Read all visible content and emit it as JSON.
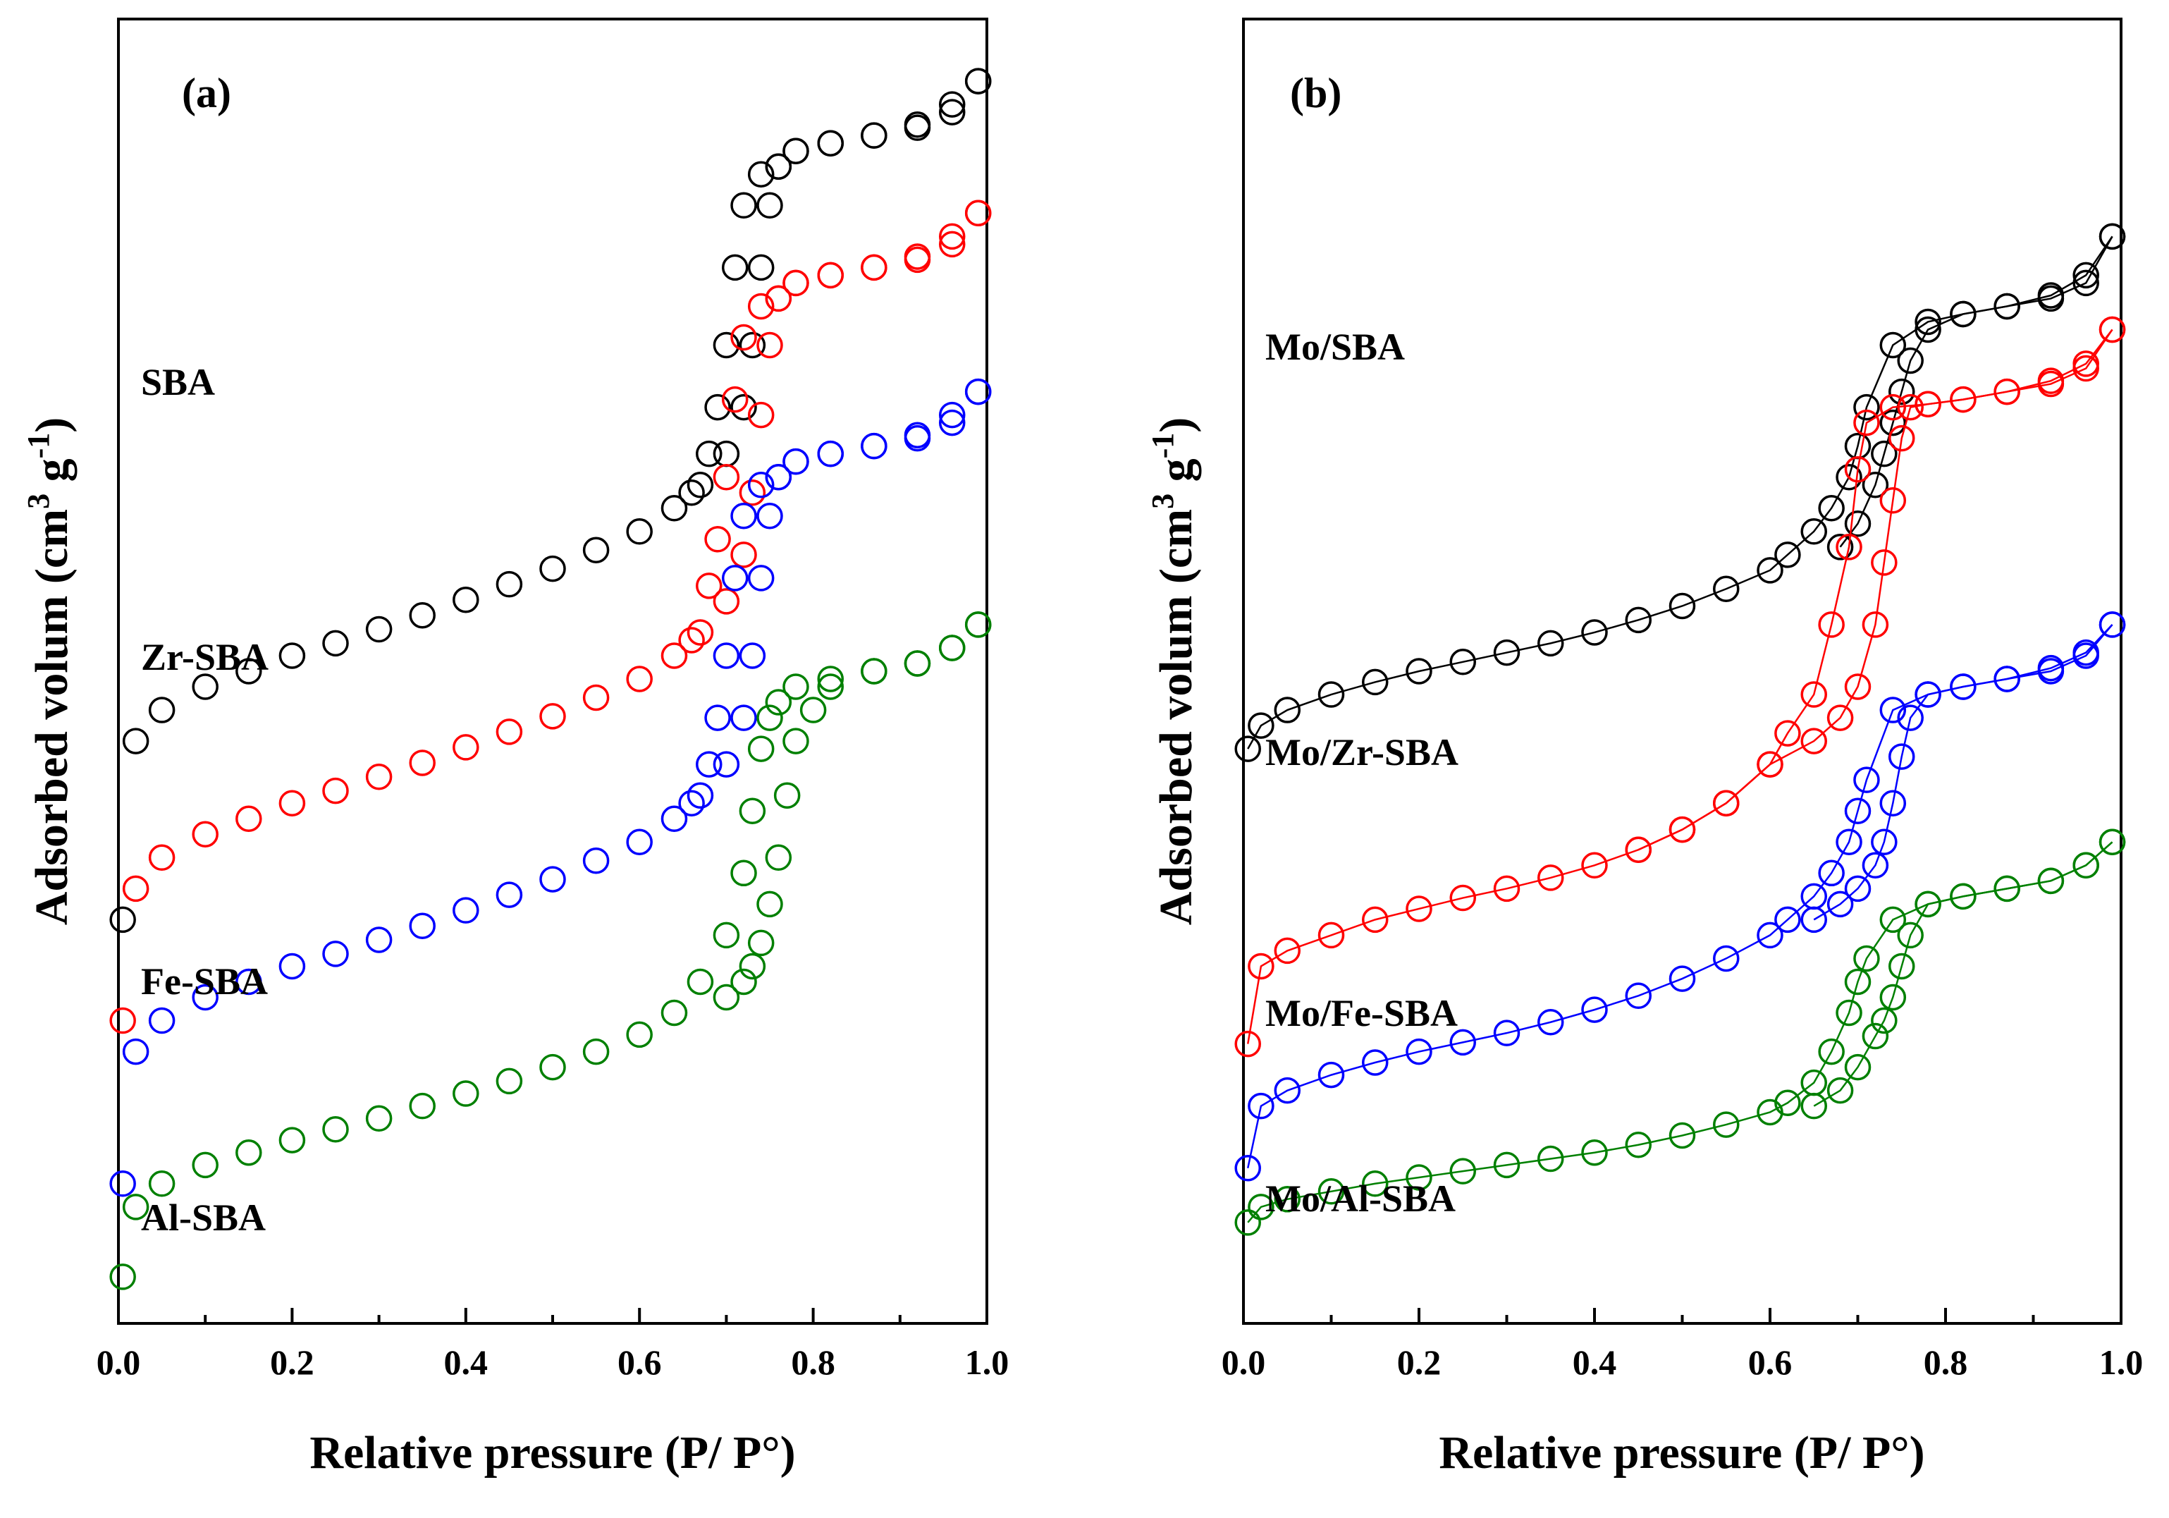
{
  "chart_data": [
    {
      "type": "scatter",
      "panel_label": "(a)",
      "xlabel": "Relative pressure (P/ P°)",
      "ylabel": "Adsorbed volum (cm3 g-1)",
      "ylabel_parts": {
        "main": "Adsorbed volum (cm",
        "sup1": "3",
        "mid": " g",
        "sup2": "-1",
        "end": ")"
      },
      "xlim": [
        0.0,
        1.0
      ],
      "x_ticks": [
        "0.0",
        "0.2",
        "0.4",
        "0.6",
        "0.8",
        "1.0"
      ],
      "y_ticks_shown": false,
      "connect_lines": false,
      "series": [
        {
          "name": "SBA",
          "color": "#000000",
          "adsorption": {
            "x": [
              0.005,
              0.02,
              0.05,
              0.1,
              0.15,
              0.2,
              0.25,
              0.3,
              0.35,
              0.4,
              0.45,
              0.5,
              0.55,
              0.6,
              0.64,
              0.67,
              0.7,
              0.72,
              0.73,
              0.74,
              0.75,
              0.76,
              0.78,
              0.82,
              0.87,
              0.92,
              0.96,
              0.99
            ],
            "y": [
              0.14,
              0.255,
              0.275,
              0.29,
              0.3,
              0.31,
              0.318,
              0.327,
              0.336,
              0.346,
              0.356,
              0.366,
              0.378,
              0.39,
              0.405,
              0.42,
              0.44,
              0.47,
              0.51,
              0.56,
              0.6,
              0.625,
              0.635,
              0.64,
              0.645,
              0.65,
              0.66,
              0.68
            ]
          },
          "desorption": {
            "x": [
              0.99,
              0.96,
              0.92,
              0.87,
              0.82,
              0.78,
              0.76,
              0.74,
              0.72,
              0.71,
              0.7,
              0.69,
              0.68,
              0.66
            ],
            "y": [
              0.68,
              0.665,
              0.652,
              0.645,
              0.64,
              0.635,
              0.625,
              0.62,
              0.6,
              0.56,
              0.51,
              0.47,
              0.44,
              0.415
            ]
          }
        },
        {
          "name": "Zr-SBA",
          "color": "#ff0000",
          "adsorption": {
            "x": [
              0.005,
              0.02,
              0.05,
              0.1,
              0.15,
              0.2,
              0.25,
              0.3,
              0.35,
              0.4,
              0.45,
              0.5,
              0.55,
              0.6,
              0.64,
              0.67,
              0.7,
              0.72,
              0.73,
              0.74,
              0.75,
              0.76,
              0.78,
              0.82,
              0.87,
              0.92,
              0.96,
              0.99
            ],
            "y": [
              0.075,
              0.16,
              0.18,
              0.195,
              0.205,
              0.215,
              0.223,
              0.232,
              0.241,
              0.251,
              0.261,
              0.271,
              0.283,
              0.295,
              0.31,
              0.325,
              0.345,
              0.375,
              0.415,
              0.465,
              0.51,
              0.54,
              0.55,
              0.555,
              0.56,
              0.565,
              0.575,
              0.595
            ]
          },
          "desorption": {
            "x": [
              0.99,
              0.96,
              0.92,
              0.87,
              0.82,
              0.78,
              0.76,
              0.74,
              0.72,
              0.71,
              0.7,
              0.69,
              0.68,
              0.66
            ],
            "y": [
              0.595,
              0.58,
              0.567,
              0.56,
              0.555,
              0.55,
              0.54,
              0.535,
              0.515,
              0.475,
              0.425,
              0.385,
              0.355,
              0.32
            ]
          }
        },
        {
          "name": "Fe-SBA",
          "color": "#0000ff",
          "adsorption": {
            "x": [
              0.005,
              0.02,
              0.05,
              0.1,
              0.15,
              0.2,
              0.25,
              0.3,
              0.35,
              0.4,
              0.45,
              0.5,
              0.55,
              0.6,
              0.64,
              0.67,
              0.7,
              0.72,
              0.73,
              0.74,
              0.75,
              0.76,
              0.78,
              0.82,
              0.87,
              0.92,
              0.96,
              0.99
            ],
            "y": [
              -0.03,
              0.055,
              0.075,
              0.09,
              0.1,
              0.11,
              0.118,
              0.127,
              0.136,
              0.146,
              0.156,
              0.166,
              0.178,
              0.19,
              0.205,
              0.22,
              0.24,
              0.27,
              0.31,
              0.36,
              0.4,
              0.425,
              0.435,
              0.44,
              0.445,
              0.45,
              0.46,
              0.48
            ]
          },
          "desorption": {
            "x": [
              0.99,
              0.96,
              0.92,
              0.87,
              0.82,
              0.78,
              0.76,
              0.74,
              0.72,
              0.71,
              0.7,
              0.69,
              0.68,
              0.66
            ],
            "y": [
              0.48,
              0.465,
              0.452,
              0.445,
              0.44,
              0.435,
              0.425,
              0.42,
              0.4,
              0.36,
              0.31,
              0.27,
              0.24,
              0.215
            ]
          }
        },
        {
          "name": "Al-SBA",
          "color": "#008000",
          "adsorption": {
            "x": [
              0.005,
              0.02,
              0.05,
              0.1,
              0.15,
              0.2,
              0.25,
              0.3,
              0.35,
              0.4,
              0.45,
              0.5,
              0.55,
              0.6,
              0.64,
              0.67,
              0.7,
              0.72,
              0.73,
              0.74,
              0.75,
              0.76,
              0.78,
              0.82,
              0.87,
              0.92,
              0.96,
              0.99
            ],
            "y": [
              -0.09,
              -0.045,
              -0.03,
              -0.018,
              -0.01,
              -0.002,
              0.005,
              0.012,
              0.02,
              0.028,
              0.036,
              0.045,
              0.055,
              0.066,
              0.08,
              0.1,
              0.13,
              0.17,
              0.21,
              0.25,
              0.27,
              0.28,
              0.29,
              0.295,
              0.3,
              0.305,
              0.315,
              0.33
            ]
          },
          "desorption": {
            "x": [
              0.99,
              0.96,
              0.92,
              0.87,
              0.82,
              0.8,
              0.78,
              0.77,
              0.76,
              0.75,
              0.74,
              0.73,
              0.72,
              0.7
            ],
            "y": [
              0.33,
              0.315,
              0.305,
              0.3,
              0.29,
              0.275,
              0.255,
              0.22,
              0.18,
              0.15,
              0.125,
              0.11,
              0.1,
              0.09
            ]
          }
        }
      ]
    },
    {
      "type": "line",
      "panel_label": "(b)",
      "xlabel": "Relative pressure (P/ P°)",
      "ylabel": "Adsorbed volum (cm3 g-1)",
      "ylabel_parts": {
        "main": "Adsorbed volum (cm",
        "sup1": "3",
        "mid": " g",
        "sup2": "-1",
        "end": ")"
      },
      "xlim": [
        0.0,
        1.0
      ],
      "x_ticks": [
        "0.0",
        "0.2",
        "0.4",
        "0.6",
        "0.8",
        "1.0"
      ],
      "y_ticks_shown": false,
      "connect_lines": true,
      "series": [
        {
          "name": "Mo/SBA",
          "color": "#000000",
          "adsorption": {
            "x": [
              0.005,
              0.02,
              0.05,
              0.1,
              0.15,
              0.2,
              0.25,
              0.3,
              0.35,
              0.4,
              0.45,
              0.5,
              0.55,
              0.6,
              0.62,
              0.65,
              0.67,
              0.69,
              0.7,
              0.71,
              0.74,
              0.78,
              0.82,
              0.87,
              0.92,
              0.96,
              0.99
            ],
            "y": [
              0.25,
              0.265,
              0.275,
              0.285,
              0.293,
              0.3,
              0.306,
              0.312,
              0.318,
              0.325,
              0.333,
              0.342,
              0.353,
              0.365,
              0.375,
              0.39,
              0.405,
              0.425,
              0.445,
              0.47,
              0.51,
              0.525,
              0.53,
              0.535,
              0.54,
              0.55,
              0.58
            ]
          },
          "desorption": {
            "x": [
              0.99,
              0.96,
              0.92,
              0.87,
              0.82,
              0.78,
              0.76,
              0.75,
              0.74,
              0.73,
              0.72,
              0.7,
              0.68
            ],
            "y": [
              0.58,
              0.555,
              0.542,
              0.535,
              0.53,
              0.52,
              0.5,
              0.48,
              0.46,
              0.44,
              0.42,
              0.395,
              0.38
            ]
          }
        },
        {
          "name": "Mo/Zr-SBA",
          "color": "#ff0000",
          "adsorption": {
            "x": [
              0.005,
              0.02,
              0.05,
              0.1,
              0.15,
              0.2,
              0.25,
              0.3,
              0.35,
              0.4,
              0.45,
              0.5,
              0.55,
              0.6,
              0.62,
              0.65,
              0.67,
              0.69,
              0.7,
              0.71,
              0.74,
              0.78,
              0.82,
              0.87,
              0.92,
              0.96,
              0.99
            ],
            "y": [
              0.06,
              0.11,
              0.12,
              0.13,
              0.14,
              0.147,
              0.154,
              0.16,
              0.167,
              0.175,
              0.185,
              0.198,
              0.215,
              0.24,
              0.26,
              0.285,
              0.33,
              0.38,
              0.43,
              0.46,
              0.47,
              0.472,
              0.475,
              0.48,
              0.485,
              0.495,
              0.52
            ]
          },
          "desorption": {
            "x": [
              0.99,
              0.96,
              0.92,
              0.87,
              0.82,
              0.78,
              0.76,
              0.75,
              0.74,
              0.73,
              0.72,
              0.7,
              0.68,
              0.65,
              0.6,
              0.55,
              0.5,
              0.45
            ],
            "y": [
              0.52,
              0.498,
              0.487,
              0.48,
              0.475,
              0.472,
              0.47,
              0.45,
              0.41,
              0.37,
              0.33,
              0.29,
              0.27,
              0.255,
              0.24,
              0.215,
              0.198,
              0.185
            ]
          }
        },
        {
          "name": "Mo/Fe-SBA",
          "color": "#0000ff",
          "adsorption": {
            "x": [
              0.005,
              0.02,
              0.05,
              0.1,
              0.15,
              0.2,
              0.25,
              0.3,
              0.35,
              0.4,
              0.45,
              0.5,
              0.55,
              0.6,
              0.62,
              0.65,
              0.67,
              0.69,
              0.7,
              0.71,
              0.74,
              0.78,
              0.82,
              0.87,
              0.92,
              0.96,
              0.99
            ],
            "y": [
              -0.02,
              0.02,
              0.03,
              0.04,
              0.048,
              0.055,
              0.061,
              0.067,
              0.074,
              0.082,
              0.091,
              0.102,
              0.115,
              0.13,
              0.14,
              0.155,
              0.17,
              0.19,
              0.21,
              0.23,
              0.275,
              0.285,
              0.29,
              0.295,
              0.3,
              0.31,
              0.33
            ]
          },
          "desorption": {
            "x": [
              0.99,
              0.96,
              0.92,
              0.87,
              0.82,
              0.78,
              0.76,
              0.75,
              0.74,
              0.73,
              0.72,
              0.7,
              0.68,
              0.65
            ],
            "y": [
              0.33,
              0.312,
              0.302,
              0.295,
              0.29,
              0.285,
              0.27,
              0.245,
              0.215,
              0.19,
              0.175,
              0.16,
              0.15,
              0.14
            ]
          }
        },
        {
          "name": "Mo/Al-SBA",
          "color": "#008000",
          "adsorption": {
            "x": [
              0.005,
              0.02,
              0.05,
              0.1,
              0.15,
              0.2,
              0.25,
              0.3,
              0.35,
              0.4,
              0.45,
              0.5,
              0.55,
              0.6,
              0.62,
              0.65,
              0.67,
              0.69,
              0.7,
              0.71,
              0.74,
              0.78,
              0.82,
              0.87,
              0.92,
              0.96,
              0.99
            ],
            "y": [
              -0.055,
              -0.045,
              -0.04,
              -0.035,
              -0.03,
              -0.026,
              -0.022,
              -0.018,
              -0.014,
              -0.01,
              -0.005,
              0.001,
              0.008,
              0.016,
              0.022,
              0.035,
              0.055,
              0.08,
              0.1,
              0.115,
              0.14,
              0.15,
              0.155,
              0.16,
              0.165,
              0.175,
              0.19
            ]
          },
          "desorption": {
            "x": [
              0.99,
              0.96,
              0.92,
              0.87,
              0.82,
              0.78,
              0.76,
              0.75,
              0.74,
              0.73,
              0.72,
              0.7,
              0.68,
              0.65
            ],
            "y": [
              0.19,
              0.175,
              0.165,
              0.16,
              0.155,
              0.15,
              0.13,
              0.11,
              0.09,
              0.075,
              0.065,
              0.045,
              0.03,
              0.02
            ]
          }
        }
      ]
    }
  ]
}
